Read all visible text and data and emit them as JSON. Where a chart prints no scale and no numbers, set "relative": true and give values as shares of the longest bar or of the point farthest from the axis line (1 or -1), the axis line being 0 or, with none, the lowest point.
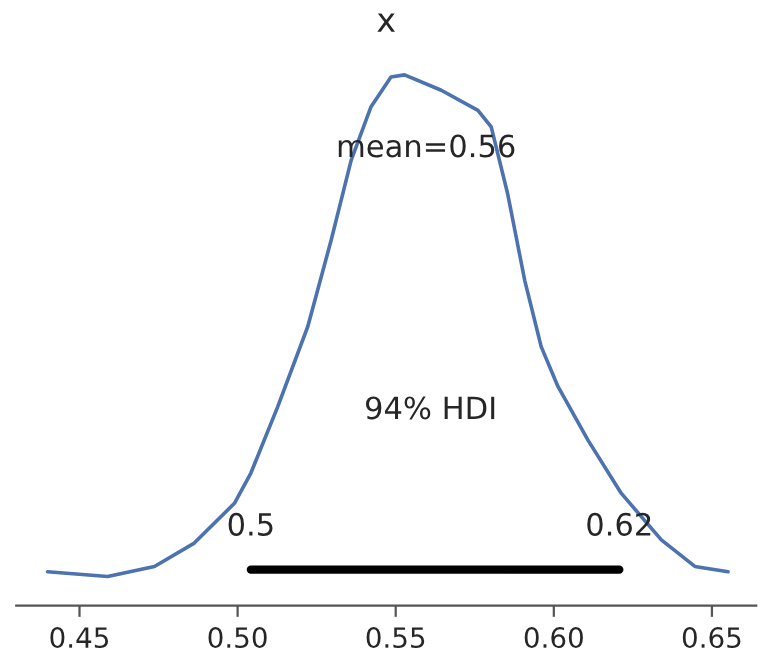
{
  "chart_data": {
    "type": "line",
    "title": "x",
    "relative": true,
    "tick_labels": "x",
    "grid": false,
    "legend": false,
    "xlim": [
      0.43,
      0.664
    ],
    "xticks": [
      0.45,
      {
        "value": 0.5,
        "label": "0.50"
      },
      0.55,
      {
        "value": 0.6,
        "label": "0.60"
      },
      0.65
    ],
    "series": [
      {
        "color": "#4c72b0",
        "x": [
          0.4399,
          0.4589,
          0.4737,
          0.4863,
          0.499,
          0.5042,
          0.5127,
          0.5222,
          0.5296,
          0.5359,
          0.5422,
          0.5485,
          0.5528,
          0.5644,
          0.576,
          0.5802,
          0.5854,
          0.5908,
          0.596,
          0.6013,
          0.6108,
          0.6213,
          0.634,
          0.6446,
          0.6551
        ],
        "values": [
          0.064,
          0.055,
          0.074,
          0.118,
          0.193,
          0.25,
          0.375,
          0.526,
          0.689,
          0.839,
          0.94,
          0.996,
          1.0,
          0.971,
          0.933,
          0.902,
          0.776,
          0.613,
          0.488,
          0.413,
          0.312,
          0.212,
          0.124,
          0.074,
          0.064
        ]
      },
      {
        "color": "#000000",
        "x": [
          0.5042,
          0.6207
        ],
        "values": [
          0.068,
          0.068
        ]
      }
    ],
    "annotations": [
      "mean=0.56",
      "94% HDI",
      {
        "text": "0.5",
        "x": 0.5042,
        "y": 0.068
      },
      {
        "text": "0.62",
        "x": 0.6207,
        "y": 0.068
      }
    ]
  }
}
